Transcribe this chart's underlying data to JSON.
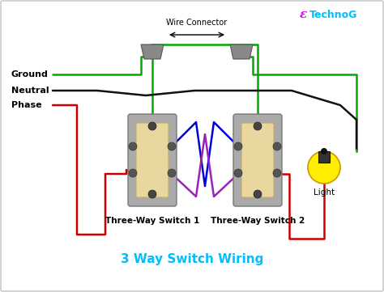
{
  "title": "3 Way Switch Wiring",
  "title_color": "#00BFFF",
  "title_fontsize": 11,
  "background_color": "#ffffff",
  "border_color": "#cccccc",
  "watermark_E_color": "#ee00ee",
  "watermark_rest_color": "#00BFFF",
  "wire_connector_label": "Wire Connector",
  "ground_label": "Ground",
  "neutral_label": "Neutral",
  "phase_label": "Phase",
  "light_label": "Light",
  "switch1_label": "Three-Way Switch 1",
  "switch2_label": "Three-Way Switch 2",
  "green_color": "#00aa00",
  "black_color": "#111111",
  "red_color": "#cc0000",
  "blue_color": "#0000dd",
  "purple_color": "#9922bb",
  "gray_color": "#888888",
  "yellow_color": "#ffee00",
  "switch_body_color": "#e8d8a0",
  "switch_frame_color": "#aaaaaa",
  "lw": 1.8
}
